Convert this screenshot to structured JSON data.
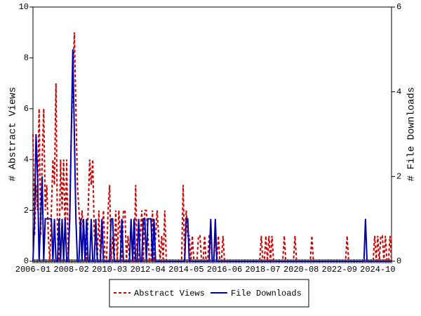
{
  "chart_data": {
    "type": "line",
    "ylabel": "# Abstract Views",
    "y2label": "# File Downloads",
    "categories": [
      "2006-01",
      null,
      null,
      null,
      null,
      null,
      null,
      null,
      null,
      null,
      null,
      null,
      null,
      null,
      null,
      null,
      null,
      null,
      null,
      null,
      null,
      null,
      null,
      null,
      null,
      "2008-02",
      null,
      null,
      null,
      null,
      null,
      null,
      null,
      null,
      null,
      null,
      null,
      null,
      null,
      null,
      null,
      null,
      null,
      null,
      null,
      null,
      null,
      null,
      null,
      null,
      "2010-03",
      null,
      null,
      null,
      null,
      null,
      null,
      null,
      null,
      null,
      null,
      null,
      null,
      null,
      null,
      null,
      null,
      null,
      null,
      null,
      null,
      null,
      null,
      null,
      null,
      "2012-04",
      null,
      null,
      null,
      null,
      null,
      null,
      null,
      null,
      null,
      null,
      null,
      null,
      null,
      null,
      null,
      null,
      null,
      null,
      null,
      null,
      null,
      null,
      null,
      null,
      "2014-05",
      null,
      null,
      null,
      null,
      null,
      null,
      null,
      null,
      null,
      null,
      null,
      null,
      null,
      null,
      null,
      null,
      null,
      null,
      null,
      null,
      null,
      null,
      null,
      null,
      "2016-06",
      null,
      null,
      null,
      null,
      null,
      null,
      null,
      null,
      null,
      null,
      null,
      null,
      null,
      null,
      null,
      null,
      null,
      null,
      null,
      null,
      null,
      null,
      null,
      null,
      "2018-07",
      null,
      null,
      null,
      null,
      null,
      null,
      null,
      null,
      null,
      null,
      null,
      null,
      null,
      null,
      null,
      null,
      null,
      null,
      null,
      null,
      null,
      null,
      null,
      null,
      "2020-08",
      null,
      null,
      null,
      null,
      null,
      null,
      null,
      null,
      null,
      null,
      null,
      null,
      null,
      null,
      null,
      null,
      null,
      null,
      null,
      null,
      null,
      null,
      null,
      null,
      "2022-09",
      null,
      null,
      null,
      null,
      null,
      null,
      null,
      null,
      null,
      null,
      null,
      null,
      null,
      null,
      null,
      null,
      null,
      null,
      null,
      null,
      null,
      null,
      null,
      null,
      "2024-10",
      null,
      null,
      null,
      null,
      null,
      null,
      null,
      null,
      null
    ],
    "series": [
      {
        "name": "Abstract Views",
        "color": "#cc0000",
        "dash": true,
        "values": [
          5,
          1,
          3,
          2,
          6,
          1,
          4,
          6,
          2,
          3,
          1,
          0,
          2,
          4,
          3,
          7,
          1,
          0,
          4,
          2,
          4,
          1,
          4,
          0,
          2,
          5,
          7,
          9,
          6,
          3,
          2,
          1,
          2,
          1,
          1,
          0,
          2,
          4,
          3,
          4,
          1,
          1,
          0,
          2,
          0,
          1,
          2,
          0,
          0,
          2,
          3,
          0,
          1,
          0,
          2,
          0,
          2,
          1,
          0,
          2,
          2,
          0,
          1,
          0,
          0,
          0,
          0,
          3,
          0,
          0,
          1,
          2,
          0,
          2,
          2,
          1,
          0,
          0,
          2,
          0,
          1,
          2,
          1,
          0,
          1,
          0,
          2,
          0,
          0,
          0,
          0,
          0,
          0,
          0,
          0,
          0,
          0,
          0,
          3,
          0,
          2,
          1,
          1,
          0,
          1,
          0,
          0,
          0,
          1,
          1,
          0,
          0,
          1,
          0,
          0,
          1,
          1,
          0,
          0,
          1,
          0,
          1,
          0,
          0,
          1,
          0,
          0,
          0,
          0,
          0,
          0,
          0,
          0,
          0,
          0,
          0,
          0,
          0,
          0,
          0,
          0,
          0,
          0,
          0,
          0,
          0,
          0,
          0,
          0,
          1,
          0,
          0,
          1,
          0,
          1,
          0,
          1,
          0,
          0,
          0,
          0,
          0,
          0,
          0,
          1,
          0,
          0,
          0,
          0,
          0,
          0,
          1,
          0,
          0,
          0,
          0,
          0,
          0,
          0,
          0,
          0,
          0,
          1,
          0,
          0,
          0,
          0,
          0,
          0,
          0,
          0,
          0,
          0,
          0,
          0,
          0,
          0,
          0,
          0,
          0,
          0,
          0,
          0,
          0,
          0,
          1,
          0,
          0,
          0,
          0,
          0,
          0,
          0,
          0,
          0,
          0,
          0,
          0,
          0,
          0,
          0,
          0,
          0,
          1,
          0,
          1,
          0,
          1,
          1,
          0,
          1,
          0,
          0,
          1,
          0
        ]
      },
      {
        "name": "File Downloads",
        "color": "#0000aa",
        "axis": "y2",
        "values": [
          0,
          1,
          3,
          2,
          0,
          1,
          2,
          0,
          1,
          1,
          1,
          1,
          1,
          0,
          1,
          0,
          0,
          1,
          0,
          1,
          0,
          1,
          0,
          0,
          1,
          3,
          5,
          3,
          1,
          0,
          0,
          1,
          0,
          1,
          0,
          1,
          0,
          0,
          1,
          0,
          0,
          1,
          0,
          0,
          0,
          1,
          0,
          0,
          0,
          0,
          0,
          1,
          1,
          0,
          0,
          0,
          0,
          0,
          1,
          0,
          0,
          0,
          0,
          0,
          1,
          0,
          1,
          0,
          0,
          1,
          0,
          0,
          1,
          1,
          0,
          1,
          1,
          1,
          0,
          1,
          0,
          0,
          0,
          0,
          0,
          0,
          0,
          0,
          0,
          0,
          0,
          0,
          0,
          0,
          0,
          0,
          0,
          0,
          0,
          0,
          1,
          1,
          0,
          0,
          0,
          0,
          0,
          0,
          0,
          0,
          0,
          0,
          0,
          0,
          0,
          0,
          1,
          0,
          0,
          1,
          0,
          0,
          0,
          0,
          0,
          0,
          0,
          0,
          0,
          0,
          0,
          0,
          0,
          0,
          0,
          0,
          0,
          0,
          0,
          0,
          0,
          0,
          0,
          0,
          0,
          0,
          0,
          0,
          0,
          0,
          0,
          0,
          0,
          0,
          0,
          0,
          0,
          0,
          0,
          0,
          0,
          0,
          0,
          0,
          0,
          0,
          0,
          0,
          0,
          0,
          0,
          0,
          0,
          0,
          0,
          0,
          0,
          0,
          0,
          0,
          0,
          0,
          0,
          0,
          0,
          0,
          0,
          0,
          0,
          0,
          0,
          0,
          0,
          0,
          0,
          0,
          0,
          0,
          0,
          0,
          0,
          0,
          0,
          0,
          0,
          0,
          0,
          0,
          0,
          0,
          0,
          0,
          0,
          0,
          0,
          0,
          0,
          1,
          0,
          0,
          0,
          0,
          0,
          0,
          0,
          0,
          0,
          0,
          0,
          0,
          0,
          0,
          0,
          0,
          0
        ]
      }
    ],
    "ylim": [
      0,
      10
    ],
    "yticks": [
      0,
      2,
      4,
      6,
      8,
      10
    ],
    "y2lim": [
      0,
      6
    ],
    "y2ticks": [
      0,
      2,
      4,
      6
    ],
    "legend": "bottom"
  }
}
